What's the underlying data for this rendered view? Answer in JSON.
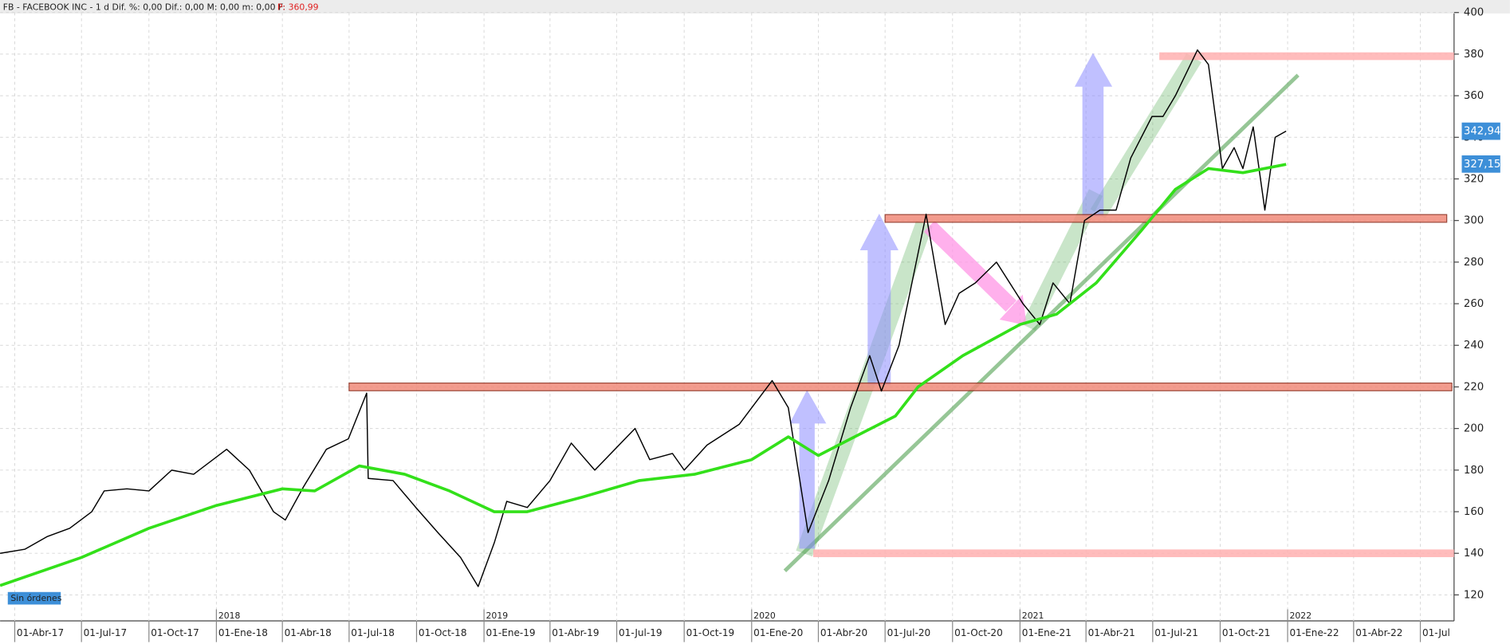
{
  "chart_data": {
    "type": "line",
    "title": "FB - FACEBOOK INC -  1 d  Dif. %: 0,00  Dif.: 0,00  M: 0,00  m: 0,00  F:",
    "price_label": "P: 360,99",
    "order_status": "Sin órdenes",
    "xlim": [
      "2017-03-12",
      "2022-08-16"
    ],
    "ylim": [
      107.5,
      400
    ],
    "yticks": [
      120,
      140,
      160,
      180,
      200,
      220,
      240,
      260,
      280,
      300,
      320,
      340,
      360,
      380,
      400
    ],
    "xticks": [
      {
        "value": "2017-04-01",
        "label": "01-Abr-17"
      },
      {
        "value": "2017-07-01",
        "label": "01-Jul-17"
      },
      {
        "value": "2017-10-01",
        "label": "01-Oct-17"
      },
      {
        "value": "2018-01-01",
        "label": "01-Ene-18"
      },
      {
        "value": "2018-04-01",
        "label": "01-Abr-18"
      },
      {
        "value": "2018-07-01",
        "label": "01-Jul-18"
      },
      {
        "value": "2018-10-01",
        "label": "01-Oct-18"
      },
      {
        "value": "2019-01-01",
        "label": "01-Ene-19"
      },
      {
        "value": "2019-04-01",
        "label": "01-Abr-19"
      },
      {
        "value": "2019-07-01",
        "label": "01-Jul-19"
      },
      {
        "value": "2019-10-01",
        "label": "01-Oct-19"
      },
      {
        "value": "2020-01-01",
        "label": "01-Ene-20"
      },
      {
        "value": "2020-04-01",
        "label": "01-Abr-20"
      },
      {
        "value": "2020-07-01",
        "label": "01-Jul-20"
      },
      {
        "value": "2020-10-01",
        "label": "01-Oct-20"
      },
      {
        "value": "2021-01-01",
        "label": "01-Ene-21"
      },
      {
        "value": "2021-04-01",
        "label": "01-Abr-21"
      },
      {
        "value": "2021-07-01",
        "label": "01-Jul-21"
      },
      {
        "value": "2021-10-01",
        "label": "01-Oct-21"
      },
      {
        "value": "2022-01-01",
        "label": "01-Ene-22"
      },
      {
        "value": "2022-04-01",
        "label": "01-Abr-22"
      },
      {
        "value": "2022-07-01",
        "label": "01-Jul"
      }
    ],
    "year_ticks": [
      {
        "value": "2018-01-01",
        "label": "2018"
      },
      {
        "value": "2019-01-01",
        "label": "2019"
      },
      {
        "value": "2020-01-01",
        "label": "2020"
      },
      {
        "value": "2021-01-01",
        "label": "2021"
      },
      {
        "value": "2022-01-01",
        "label": "2022"
      }
    ],
    "grid": true,
    "series": [
      {
        "color": "#000000",
        "x": [
          "2017-03-12",
          "2017-04-15",
          "2017-05-15",
          "2017-06-15",
          "2017-07-15",
          "2017-08-01",
          "2017-09-01",
          "2017-10-01",
          "2017-11-01",
          "2017-12-01",
          "2018-01-15",
          "2018-02-15",
          "2018-03-20",
          "2018-04-05",
          "2018-04-30",
          "2018-05-31",
          "2018-06-30",
          "2018-07-25",
          "2018-07-27",
          "2018-08-30",
          "2018-09-30",
          "2018-10-30",
          "2018-11-30",
          "2018-12-24",
          "2019-01-15",
          "2019-02-01",
          "2019-03-01",
          "2019-04-01",
          "2019-04-30",
          "2019-06-01",
          "2019-07-26",
          "2019-08-15",
          "2019-09-15",
          "2019-10-01",
          "2019-11-01",
          "2019-12-15",
          "2020-01-29",
          "2020-02-20",
          "2020-03-18",
          "2020-04-15",
          "2020-05-15",
          "2020-06-10",
          "2020-06-26",
          "2020-07-20",
          "2020-08-26",
          "2020-09-21",
          "2020-10-10",
          "2020-11-01",
          "2020-11-30",
          "2021-01-05",
          "2021-01-28",
          "2021-02-15",
          "2021-03-10",
          "2021-03-30",
          "2021-04-20",
          "2021-05-12",
          "2021-06-01",
          "2021-06-30",
          "2021-07-15",
          "2021-08-01",
          "2021-08-31",
          "2021-09-15",
          "2021-10-04",
          "2021-10-20",
          "2021-11-01",
          "2021-11-15",
          "2021-12-01",
          "2021-12-15",
          "2021-12-30"
        ],
        "values": [
          140,
          142,
          148,
          152,
          160,
          170,
          171,
          170,
          180,
          178,
          190,
          180,
          160,
          156,
          172,
          190,
          195,
          217,
          176,
          175,
          162,
          150,
          138,
          124,
          145,
          165,
          162,
          175,
          193,
          180,
          200,
          185,
          188,
          180,
          192,
          202,
          223,
          210,
          150,
          175,
          210,
          235,
          218,
          240,
          303,
          250,
          265,
          270,
          280,
          260,
          250,
          270,
          260,
          300,
          305,
          305,
          330,
          350,
          350,
          360,
          382,
          375,
          325,
          335,
          325,
          345,
          305,
          340,
          343
        ]
      },
      {
        "color": "#33e01a",
        "x": [
          "2017-03-12",
          "2017-07-01",
          "2017-10-01",
          "2018-01-01",
          "2018-04-01",
          "2018-05-15",
          "2018-07-15",
          "2018-09-15",
          "2018-11-15",
          "2019-01-15",
          "2019-03-01",
          "2019-05-15",
          "2019-08-01",
          "2019-10-15",
          "2020-01-01",
          "2020-02-20",
          "2020-04-01",
          "2020-05-15",
          "2020-07-15",
          "2020-08-15",
          "2020-10-15",
          "2021-01-01",
          "2021-02-20",
          "2021-04-15",
          "2021-06-15",
          "2021-08-01",
          "2021-09-15",
          "2021-11-01",
          "2021-12-30"
        ],
        "values": [
          124.5,
          138,
          152,
          163,
          171,
          170,
          182,
          178,
          170,
          160,
          160,
          167,
          175,
          178,
          185,
          196,
          187,
          195,
          206,
          220,
          235,
          250,
          255,
          270,
          295,
          315,
          325,
          323,
          327
        ]
      }
    ],
    "levels": [
      {
        "value": 220,
        "start": "2018-07-01",
        "end": "2022-08-13",
        "color": "#f08a7a"
      },
      {
        "value": 301,
        "start": "2020-07-01",
        "end": "2022-08-06",
        "color": "#f08a7a"
      },
      {
        "value": 379,
        "start": "2021-07-10",
        "end": "2022-08-16",
        "color": "#ffb0b0"
      },
      {
        "value": 140,
        "start": "2020-03-25",
        "end": "2022-08-16",
        "color": "#ffb0b0"
      }
    ],
    "last_labels": [
      {
        "value": 342.94,
        "label": "342,94",
        "color": "#3d8fd8"
      },
      {
        "value": 327.15,
        "label": "327,15",
        "color": "#3d8fd8"
      }
    ]
  }
}
